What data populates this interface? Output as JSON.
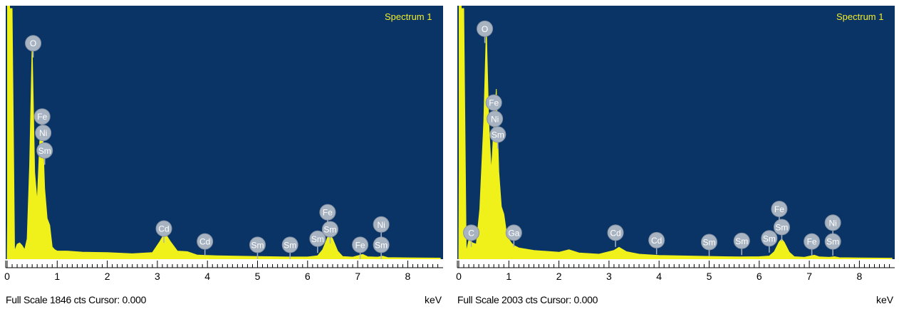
{
  "colors": {
    "plot_background": "#0a3366",
    "spectrum": "#f0f01a",
    "label_bubble": "#a8b3c2",
    "label_text": "#ffffff",
    "spectrum_label_text": "#f3ee2a"
  },
  "chart_data": [
    {
      "type": "area",
      "title": "Spectrum 1",
      "footer": "Full Scale 1846 cts Cursor: 0.000",
      "x_unit": "keV",
      "xlim": [
        0,
        8.65
      ],
      "ylim": [
        0,
        1846
      ],
      "x_ticks": [
        "0",
        "1",
        "2",
        "3",
        "4",
        "5",
        "6",
        "7",
        "8"
      ],
      "grid": false,
      "legend": "none",
      "spectrum": {
        "x": [
          0.0,
          0.05,
          0.1,
          0.15,
          0.2,
          0.25,
          0.3,
          0.35,
          0.4,
          0.45,
          0.5,
          0.55,
          0.6,
          0.65,
          0.7,
          0.75,
          0.8,
          0.85,
          0.9,
          0.95,
          1.0,
          1.2,
          1.5,
          2.0,
          2.5,
          2.9,
          3.05,
          3.15,
          3.25,
          3.4,
          3.6,
          3.8,
          4.2,
          5.0,
          5.6,
          6.0,
          6.2,
          6.3,
          6.4,
          6.45,
          6.5,
          6.6,
          6.7,
          6.9,
          7.05,
          7.1,
          7.2,
          7.4,
          7.5,
          7.6,
          8.0,
          8.65
        ],
        "y": [
          0,
          1846,
          1846,
          60,
          110,
          120,
          100,
          70,
          150,
          700,
          1580,
          640,
          420,
          860,
          1040,
          520,
          300,
          250,
          90,
          70,
          60,
          60,
          52,
          48,
          40,
          48,
          130,
          195,
          135,
          60,
          55,
          30,
          25,
          20,
          16,
          16,
          25,
          70,
          160,
          180,
          150,
          60,
          20,
          15,
          30,
          35,
          18,
          15,
          22,
          12,
          10,
          8
        ]
      },
      "peak_labels": [
        {
          "label": "O",
          "x": 0.52,
          "y": 1580
        },
        {
          "label": "Fe",
          "x": 0.7,
          "y": 1040
        },
        {
          "label": "Ni",
          "x": 0.72,
          "y": 920
        },
        {
          "label": "Sm",
          "x": 0.75,
          "y": 790
        },
        {
          "label": "Cd",
          "x": 3.13,
          "y": 215
        },
        {
          "label": "Cd",
          "x": 3.95,
          "y": 120
        },
        {
          "label": "Sm",
          "x": 5.0,
          "y": 95
        },
        {
          "label": "Sm",
          "x": 5.65,
          "y": 95
        },
        {
          "label": "Sm",
          "x": 6.2,
          "y": 140
        },
        {
          "label": "Sm",
          "x": 6.45,
          "y": 210
        },
        {
          "label": "Fe",
          "x": 6.4,
          "y": 335
        },
        {
          "label": "Fe",
          "x": 7.05,
          "y": 95
        },
        {
          "label": "Sm",
          "x": 7.47,
          "y": 95
        },
        {
          "label": "Ni",
          "x": 7.47,
          "y": 245
        }
      ]
    },
    {
      "type": "area",
      "title": "Spectrum 1",
      "footer": "Full Scale 2003 cts Cursor: 0.000",
      "x_unit": "keV",
      "xlim": [
        0,
        8.65
      ],
      "ylim": [
        0,
        2003
      ],
      "x_ticks": [
        "0",
        "1",
        "2",
        "3",
        "4",
        "5",
        "6",
        "7",
        "8"
      ],
      "grid": false,
      "legend": "none",
      "spectrum": {
        "x": [
          0.0,
          0.02,
          0.05,
          0.1,
          0.15,
          0.2,
          0.28,
          0.35,
          0.42,
          0.5,
          0.55,
          0.6,
          0.65,
          0.7,
          0.75,
          0.8,
          0.85,
          0.9,
          0.95,
          1.0,
          1.05,
          1.1,
          1.2,
          1.5,
          2.0,
          2.2,
          2.4,
          2.8,
          3.1,
          3.2,
          3.35,
          3.6,
          4.0,
          5.0,
          5.6,
          6.0,
          6.2,
          6.3,
          6.4,
          6.45,
          6.5,
          6.6,
          6.7,
          6.9,
          7.05,
          7.1,
          7.2,
          7.4,
          7.5,
          7.6,
          8.0,
          8.65
        ],
        "y": [
          0,
          2003,
          2003,
          2003,
          60,
          150,
          130,
          120,
          400,
          1100,
          1850,
          1080,
          700,
          1050,
          1360,
          700,
          420,
          360,
          220,
          160,
          130,
          110,
          90,
          70,
          55,
          75,
          50,
          40,
          70,
          95,
          60,
          40,
          30,
          22,
          18,
          20,
          25,
          60,
          140,
          160,
          135,
          55,
          20,
          15,
          28,
          32,
          18,
          15,
          20,
          12,
          10,
          8
        ]
      },
      "peak_labels": [
        {
          "label": "O",
          "x": 0.52,
          "y": 1830
        },
        {
          "label": "Fe",
          "x": 0.7,
          "y": 1240
        },
        {
          "label": "Ni",
          "x": 0.72,
          "y": 1110
        },
        {
          "label": "Sm",
          "x": 0.78,
          "y": 985
        },
        {
          "label": "C",
          "x": 0.25,
          "y": 200
        },
        {
          "label": "Ga",
          "x": 1.1,
          "y": 200
        },
        {
          "label": "Cd",
          "x": 3.13,
          "y": 200
        },
        {
          "label": "Cd",
          "x": 3.95,
          "y": 140
        },
        {
          "label": "Sm",
          "x": 5.0,
          "y": 125
        },
        {
          "label": "Sm",
          "x": 5.65,
          "y": 135
        },
        {
          "label": "Sm",
          "x": 6.2,
          "y": 155
        },
        {
          "label": "Sm",
          "x": 6.45,
          "y": 245
        },
        {
          "label": "Fe",
          "x": 6.4,
          "y": 390
        },
        {
          "label": "Fe",
          "x": 7.05,
          "y": 130
        },
        {
          "label": "Sm",
          "x": 7.47,
          "y": 130
        },
        {
          "label": "Ni",
          "x": 7.47,
          "y": 280
        }
      ]
    }
  ]
}
